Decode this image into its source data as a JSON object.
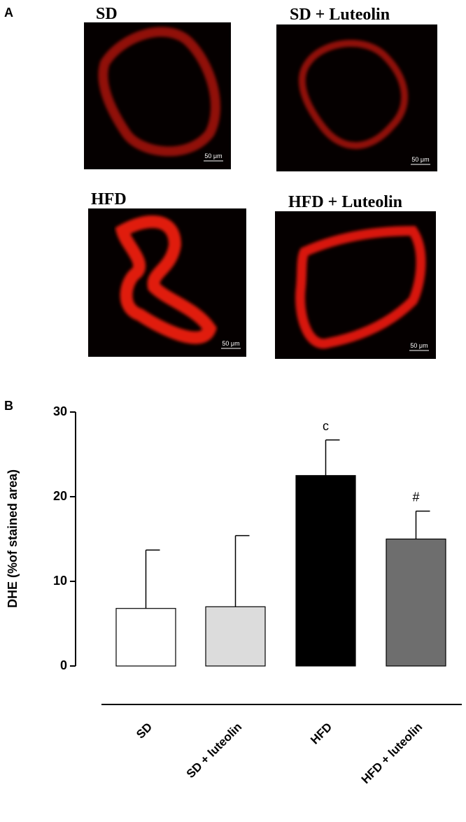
{
  "panel_labels": [
    "A",
    "B"
  ],
  "images": [
    {
      "title": "SD",
      "scale_bar": "50 μm"
    },
    {
      "title": "SD + Luteolin",
      "scale_bar": "50 μm"
    },
    {
      "title": "HFD",
      "scale_bar": "50 μm"
    },
    {
      "title": "HFD + Luteolin",
      "scale_bar": "50 μm"
    }
  ],
  "chart_data": {
    "type": "bar",
    "y_label": "DHE (%of stained area)",
    "categories": [
      "SD",
      "SD + luteolin",
      "HFD",
      "HFD + luteolin"
    ],
    "values": [
      6.8,
      7.0,
      22.5,
      15.0
    ],
    "errors": [
      6.9,
      8.4,
      4.2,
      3.3
    ],
    "colors": [
      "#ffffff",
      "#dcdcdc",
      "#000000",
      "#6e6e6e"
    ],
    "annotations": [
      null,
      null,
      "c",
      "#"
    ],
    "ylim": [
      0,
      30
    ],
    "yticks": [
      0,
      10,
      20,
      30
    ]
  }
}
